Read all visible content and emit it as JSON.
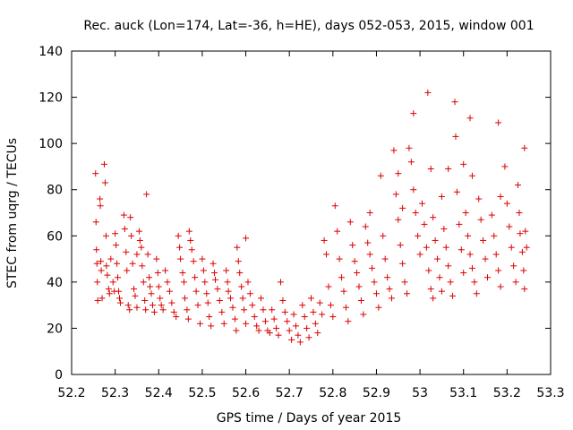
{
  "chart_data": {
    "type": "scatter",
    "title": "Rec. auck (Lon=174, Lat=-36, h=HE), days 052-053, 2015, window 001",
    "xlabel": "GPS time / Days of year 2015",
    "ylabel": "STEC from uqrg / TECUs",
    "xlim": [
      52.2,
      53.3
    ],
    "ylim": [
      0,
      140
    ],
    "xticks": [
      52.2,
      52.3,
      52.4,
      52.5,
      52.6,
      52.7,
      52.8,
      52.9,
      53.0,
      53.1,
      53.2,
      53.3
    ],
    "xtick_labels": [
      "52.2",
      "52.3",
      "52.4",
      "52.5",
      "52.6",
      "52.7",
      "52.8",
      "52.9",
      "53",
      "53.1",
      "53.2",
      "53.3"
    ],
    "yticks": [
      0,
      20,
      40,
      60,
      80,
      100,
      120,
      140
    ],
    "ytick_labels": [
      "0",
      "20",
      "40",
      "60",
      "80",
      "100",
      "120",
      "140"
    ],
    "marker": "plus",
    "color": "#dd0000",
    "series": [
      {
        "name": "STEC",
        "points": [
          [
            52.255,
            87
          ],
          [
            52.256,
            66
          ],
          [
            52.257,
            54
          ],
          [
            52.258,
            48
          ],
          [
            52.259,
            40
          ],
          [
            52.26,
            32
          ],
          [
            52.265,
            76
          ],
          [
            52.266,
            73
          ],
          [
            52.267,
            49
          ],
          [
            52.268,
            45
          ],
          [
            52.27,
            33
          ],
          [
            52.275,
            91
          ],
          [
            52.277,
            83
          ],
          [
            52.279,
            60
          ],
          [
            52.28,
            47
          ],
          [
            52.282,
            43
          ],
          [
            52.285,
            37
          ],
          [
            52.287,
            35
          ],
          [
            52.29,
            50
          ],
          [
            52.295,
            40
          ],
          [
            52.298,
            36
          ],
          [
            52.3,
            61
          ],
          [
            52.302,
            56
          ],
          [
            52.304,
            48
          ],
          [
            52.306,
            42
          ],
          [
            52.308,
            36
          ],
          [
            52.31,
            33
          ],
          [
            52.312,
            31
          ],
          [
            52.32,
            69
          ],
          [
            52.322,
            63
          ],
          [
            52.325,
            53
          ],
          [
            52.327,
            45
          ],
          [
            52.33,
            30
          ],
          [
            52.333,
            28
          ],
          [
            52.335,
            68
          ],
          [
            52.337,
            60
          ],
          [
            52.34,
            48
          ],
          [
            52.343,
            37
          ],
          [
            52.346,
            34
          ],
          [
            52.35,
            29
          ],
          [
            52.35,
            52
          ],
          [
            52.355,
            62
          ],
          [
            52.357,
            58
          ],
          [
            52.36,
            55
          ],
          [
            52.362,
            47
          ],
          [
            52.365,
            40
          ],
          [
            52.368,
            32
          ],
          [
            52.37,
            28
          ],
          [
            52.372,
            78
          ],
          [
            52.375,
            52
          ],
          [
            52.378,
            42
          ],
          [
            52.38,
            38
          ],
          [
            52.383,
            35
          ],
          [
            52.386,
            30
          ],
          [
            52.39,
            27
          ],
          [
            52.395,
            50
          ],
          [
            52.398,
            44
          ],
          [
            52.4,
            38
          ],
          [
            52.403,
            33
          ],
          [
            52.406,
            30
          ],
          [
            52.41,
            28
          ],
          [
            52.415,
            45
          ],
          [
            52.42,
            40
          ],
          [
            52.425,
            36
          ],
          [
            52.43,
            31
          ],
          [
            52.435,
            27
          ],
          [
            52.44,
            25
          ],
          [
            52.445,
            60
          ],
          [
            52.448,
            55
          ],
          [
            52.45,
            50
          ],
          [
            52.455,
            44
          ],
          [
            52.458,
            40
          ],
          [
            52.46,
            33
          ],
          [
            52.465,
            28
          ],
          [
            52.468,
            24
          ],
          [
            52.47,
            62
          ],
          [
            52.473,
            58
          ],
          [
            52.476,
            54
          ],
          [
            52.48,
            49
          ],
          [
            52.483,
            42
          ],
          [
            52.486,
            36
          ],
          [
            52.49,
            30
          ],
          [
            52.495,
            22
          ],
          [
            52.5,
            50
          ],
          [
            52.503,
            45
          ],
          [
            52.506,
            40
          ],
          [
            52.51,
            35
          ],
          [
            52.513,
            31
          ],
          [
            52.516,
            25
          ],
          [
            52.52,
            21
          ],
          [
            52.525,
            48
          ],
          [
            52.528,
            44
          ],
          [
            52.53,
            41
          ],
          [
            52.535,
            37
          ],
          [
            52.54,
            32
          ],
          [
            52.545,
            27
          ],
          [
            52.55,
            22
          ],
          [
            52.555,
            45
          ],
          [
            52.558,
            40
          ],
          [
            52.56,
            36
          ],
          [
            52.565,
            33
          ],
          [
            52.57,
            29
          ],
          [
            52.575,
            24
          ],
          [
            52.578,
            19
          ],
          [
            52.58,
            55
          ],
          [
            52.583,
            49
          ],
          [
            52.586,
            44
          ],
          [
            52.59,
            38
          ],
          [
            52.593,
            33
          ],
          [
            52.596,
            28
          ],
          [
            52.6,
            22
          ],
          [
            52.6,
            59
          ],
          [
            52.605,
            40
          ],
          [
            52.61,
            35
          ],
          [
            52.615,
            30
          ],
          [
            52.62,
            25
          ],
          [
            52.625,
            21
          ],
          [
            52.63,
            19
          ],
          [
            52.635,
            33
          ],
          [
            52.64,
            28
          ],
          [
            52.645,
            23
          ],
          [
            52.65,
            19
          ],
          [
            52.655,
            18
          ],
          [
            52.66,
            28
          ],
          [
            52.665,
            24
          ],
          [
            52.67,
            20
          ],
          [
            52.675,
            17
          ],
          [
            52.68,
            40
          ],
          [
            52.685,
            32
          ],
          [
            52.69,
            27
          ],
          [
            52.695,
            23
          ],
          [
            52.7,
            19
          ],
          [
            52.705,
            15
          ],
          [
            52.71,
            26
          ],
          [
            52.715,
            21
          ],
          [
            52.72,
            17
          ],
          [
            52.725,
            14
          ],
          [
            52.73,
            30
          ],
          [
            52.735,
            25
          ],
          [
            52.74,
            20
          ],
          [
            52.745,
            16
          ],
          [
            52.75,
            33
          ],
          [
            52.755,
            27
          ],
          [
            52.76,
            22
          ],
          [
            52.765,
            18
          ],
          [
            52.77,
            31
          ],
          [
            52.775,
            26
          ],
          [
            52.78,
            58
          ],
          [
            52.785,
            52
          ],
          [
            52.79,
            38
          ],
          [
            52.795,
            30
          ],
          [
            52.8,
            25
          ],
          [
            52.805,
            73
          ],
          [
            52.81,
            62
          ],
          [
            52.815,
            50
          ],
          [
            52.82,
            42
          ],
          [
            52.825,
            36
          ],
          [
            52.83,
            29
          ],
          [
            52.835,
            23
          ],
          [
            52.84,
            66
          ],
          [
            52.845,
            56
          ],
          [
            52.85,
            49
          ],
          [
            52.855,
            44
          ],
          [
            52.86,
            38
          ],
          [
            52.865,
            32
          ],
          [
            52.87,
            26
          ],
          [
            52.875,
            64
          ],
          [
            52.88,
            57
          ],
          [
            52.885,
            52
          ],
          [
            52.89,
            46
          ],
          [
            52.895,
            40
          ],
          [
            52.9,
            35
          ],
          [
            52.905,
            29
          ],
          [
            52.885,
            70
          ],
          [
            52.91,
            86
          ],
          [
            52.915,
            60
          ],
          [
            52.92,
            50
          ],
          [
            52.925,
            42
          ],
          [
            52.93,
            37
          ],
          [
            52.935,
            33
          ],
          [
            52.94,
            97
          ],
          [
            52.945,
            78
          ],
          [
            52.95,
            67
          ],
          [
            52.955,
            56
          ],
          [
            52.96,
            48
          ],
          [
            52.965,
            40
          ],
          [
            52.97,
            35
          ],
          [
            52.95,
            87
          ],
          [
            52.96,
            72
          ],
          [
            52.975,
            98
          ],
          [
            52.98,
            92
          ],
          [
            52.985,
            80
          ],
          [
            52.99,
            70
          ],
          [
            52.995,
            60
          ],
          [
            53.0,
            52
          ],
          [
            52.985,
            113
          ],
          [
            53.005,
            74
          ],
          [
            53.01,
            65
          ],
          [
            53.015,
            55
          ],
          [
            53.02,
            45
          ],
          [
            53.025,
            37
          ],
          [
            53.03,
            33
          ],
          [
            53.018,
            122
          ],
          [
            53.025,
            89
          ],
          [
            53.03,
            68
          ],
          [
            53.035,
            58
          ],
          [
            53.04,
            50
          ],
          [
            53.045,
            42
          ],
          [
            53.05,
            36
          ],
          [
            53.05,
            77
          ],
          [
            53.055,
            63
          ],
          [
            53.06,
            55
          ],
          [
            53.065,
            47
          ],
          [
            53.07,
            40
          ],
          [
            53.075,
            34
          ],
          [
            53.065,
            89
          ],
          [
            53.08,
            118
          ],
          [
            53.082,
            103
          ],
          [
            53.085,
            79
          ],
          [
            53.09,
            65
          ],
          [
            53.095,
            54
          ],
          [
            53.1,
            44
          ],
          [
            53.1,
            91
          ],
          [
            53.105,
            70
          ],
          [
            53.11,
            60
          ],
          [
            53.115,
            52
          ],
          [
            53.12,
            46
          ],
          [
            53.125,
            40
          ],
          [
            53.13,
            35
          ],
          [
            53.115,
            111
          ],
          [
            53.12,
            86
          ],
          [
            53.135,
            76
          ],
          [
            53.14,
            67
          ],
          [
            53.145,
            58
          ],
          [
            53.15,
            50
          ],
          [
            53.155,
            42
          ],
          [
            53.165,
            69
          ],
          [
            53.17,
            60
          ],
          [
            53.175,
            52
          ],
          [
            53.18,
            45
          ],
          [
            53.185,
            38
          ],
          [
            53.18,
            109
          ],
          [
            53.185,
            77
          ],
          [
            53.195,
            90
          ],
          [
            53.2,
            74
          ],
          [
            53.205,
            64
          ],
          [
            53.21,
            55
          ],
          [
            53.215,
            47
          ],
          [
            53.22,
            40
          ],
          [
            53.225,
            82
          ],
          [
            53.228,
            70
          ],
          [
            53.23,
            61
          ],
          [
            53.235,
            53
          ],
          [
            53.238,
            45
          ],
          [
            53.24,
            37
          ],
          [
            53.24,
            98
          ],
          [
            53.242,
            62
          ],
          [
            53.245,
            55
          ]
        ]
      }
    ]
  }
}
